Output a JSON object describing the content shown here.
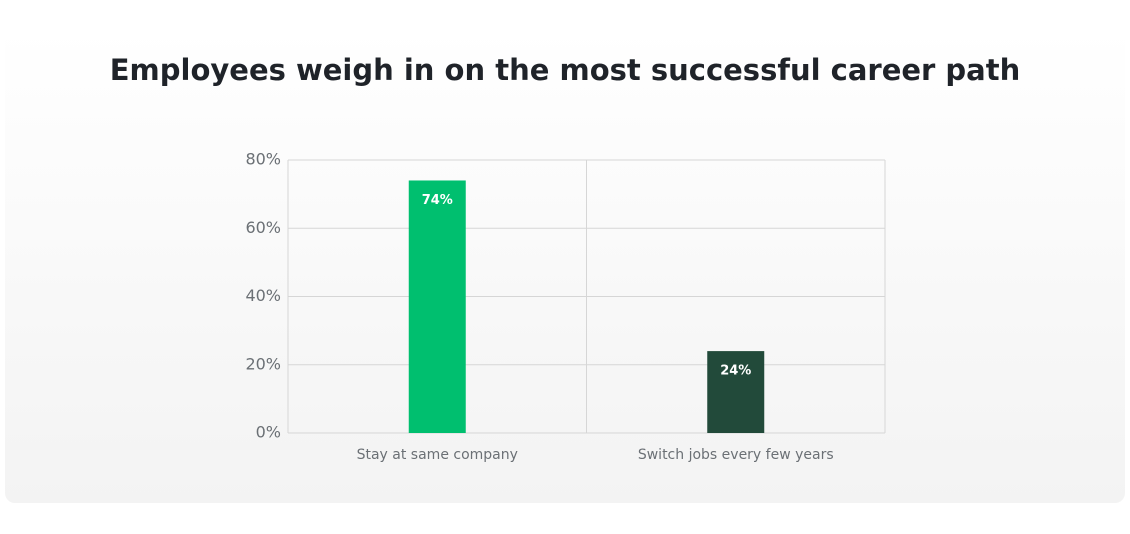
{
  "chart_data": {
    "type": "bar",
    "title": "Employees weigh in on the most successful career path",
    "categories": [
      "Stay at same company",
      "Switch jobs every few years"
    ],
    "values": [
      74,
      24
    ],
    "value_labels": [
      "74%",
      "24%"
    ],
    "colors": [
      "#00bf6f",
      "#224a3a"
    ],
    "ylim": [
      0,
      80
    ],
    "yticks": [
      {
        "value": 0,
        "label": "0%"
      },
      {
        "value": 20,
        "label": "20%"
      },
      {
        "value": 40,
        "label": "40%"
      },
      {
        "value": 60,
        "label": "60%"
      },
      {
        "value": 80,
        "label": "80%"
      }
    ],
    "grid": true
  }
}
